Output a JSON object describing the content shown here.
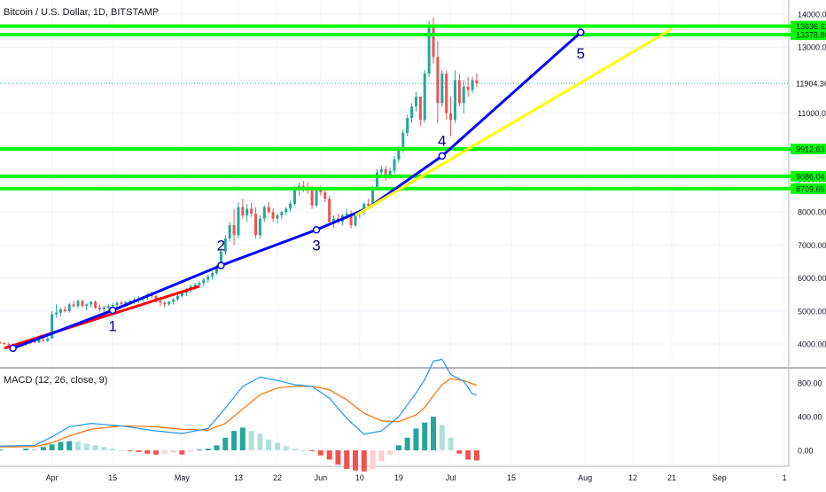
{
  "header": {
    "symbol_title": "Bitcoin / U.S. Dollar, 1D, BITSTAMP"
  },
  "macd_panel": {
    "title": "MACD (12, 26, close, 9)"
  },
  "colors": {
    "up_candle": "#26a69a",
    "down_candle": "#ef5350",
    "level_line": "#00ff00",
    "label_bg": "#00ff00",
    "last_price_line": "#26a69a",
    "blue_trend": "#0000ff",
    "yellow_trend": "#ffff00",
    "red_trend": "#ff0000",
    "wave_label": "#00008b",
    "macd_line": "#2196f3",
    "signal_line": "#ff6d00",
    "hist_up_strong": "#26a69a",
    "hist_up_weak": "#b2dfdb",
    "hist_down_strong": "#ef5350",
    "hist_down_weak": "#ffcdd2"
  },
  "chart_data": {
    "type": "candlestick",
    "title": "Bitcoin / U.S. Dollar, 1D, BITSTAMP",
    "x_ticks": [
      {
        "label": "Apr",
        "day": 6
      },
      {
        "label": "15",
        "day": 20
      },
      {
        "label": "May",
        "day": 36
      },
      {
        "label": "13",
        "day": 49
      },
      {
        "label": "22",
        "day": 58
      },
      {
        "label": "Jun",
        "day": 68
      },
      {
        "label": "10",
        "day": 77
      },
      {
        "label": "19",
        "day": 86
      },
      {
        "label": "Jul",
        "day": 98
      },
      {
        "label": "15",
        "day": 112
      },
      {
        "label": "Aug",
        "day": 129
      },
      {
        "label": "12",
        "day": 140
      },
      {
        "label": "21",
        "day": 149
      },
      {
        "label": "Sep",
        "day": 160
      },
      {
        "label": "1",
        "day": 175
      }
    ],
    "x_range": [
      -6,
      176
    ],
    "y_range": [
      3000,
      14300
    ],
    "y_ticks": [
      4000,
      5000,
      6000,
      7000,
      8000,
      9000,
      10000,
      11000,
      12000,
      13000,
      14000
    ],
    "y_tick_labels": [
      "4000.00",
      "5000.00",
      "6000.00",
      "7000.00",
      "8000.00",
      "9000.00",
      "10000.00",
      "11000.00",
      "12000.00",
      "13000.00",
      "14000.00"
    ],
    "horizontal_levels": [
      {
        "value": 13636.62,
        "label": "13636.62"
      },
      {
        "value": 13378.8,
        "label": "13378.80"
      },
      {
        "value": 9912.63,
        "label": "9912.63"
      },
      {
        "value": 9086.04,
        "label": "9086.04"
      },
      {
        "value": 8709.65,
        "label": "8709.65"
      }
    ],
    "last_price": {
      "value": 11904.36,
      "label": "11904.36"
    },
    "candles": [
      [
        -6,
        4050,
        4080,
        3990,
        4030
      ],
      [
        -5,
        4030,
        4060,
        3980,
        4000
      ],
      [
        -4,
        4000,
        4040,
        3960,
        3990
      ],
      [
        -3,
        3990,
        4020,
        3950,
        3970
      ],
      [
        -2,
        3970,
        4000,
        3930,
        3960
      ],
      [
        -1,
        3960,
        4000,
        3920,
        3990
      ],
      [
        0,
        3990,
        4050,
        3950,
        4020
      ],
      [
        1,
        4020,
        4100,
        3990,
        4080
      ],
      [
        2,
        4080,
        4130,
        4020,
        4050
      ],
      [
        3,
        4050,
        4150,
        4030,
        4120
      ],
      [
        4,
        4120,
        4200,
        4060,
        4090
      ],
      [
        5,
        4090,
        4220,
        4060,
        4170
      ],
      [
        6,
        4170,
        5000,
        4150,
        4900
      ],
      [
        7,
        4900,
        5200,
        4800,
        4950
      ],
      [
        8,
        4950,
        5100,
        4850,
        5050
      ],
      [
        9,
        5050,
        5150,
        4950,
        5000
      ],
      [
        10,
        5000,
        5250,
        4950,
        5200
      ],
      [
        11,
        5200,
        5300,
        5100,
        5150
      ],
      [
        12,
        5150,
        5350,
        5080,
        5300
      ],
      [
        13,
        5300,
        5350,
        5100,
        5150
      ],
      [
        14,
        5150,
        5250,
        5020,
        5200
      ],
      [
        15,
        5200,
        5300,
        5100,
        5280
      ],
      [
        16,
        5280,
        5320,
        5050,
        5100
      ],
      [
        17,
        5100,
        5200,
        4980,
        5050
      ],
      [
        18,
        5050,
        5150,
        4950,
        5100
      ],
      [
        19,
        5100,
        5200,
        5000,
        5150
      ],
      [
        20,
        5150,
        5250,
        5050,
        5180
      ],
      [
        21,
        5180,
        5300,
        5100,
        5250
      ],
      [
        22,
        5250,
        5320,
        5150,
        5200
      ],
      [
        23,
        5200,
        5300,
        5120,
        5280
      ],
      [
        24,
        5280,
        5350,
        5200,
        5300
      ],
      [
        25,
        5300,
        5400,
        5220,
        5350
      ],
      [
        26,
        5350,
        5450,
        5250,
        5380
      ],
      [
        27,
        5380,
        5450,
        5280,
        5420
      ],
      [
        28,
        5420,
        5550,
        5350,
        5500
      ],
      [
        29,
        5500,
        5600,
        5380,
        5450
      ],
      [
        30,
        5450,
        5500,
        5250,
        5300
      ],
      [
        31,
        5300,
        5380,
        5150,
        5250
      ],
      [
        32,
        5250,
        5300,
        5100,
        5200
      ],
      [
        33,
        5200,
        5300,
        5150,
        5280
      ],
      [
        34,
        5280,
        5400,
        5200,
        5350
      ],
      [
        35,
        5350,
        5500,
        5300,
        5450
      ],
      [
        36,
        5450,
        5600,
        5400,
        5550
      ],
      [
        37,
        5550,
        5700,
        5450,
        5650
      ],
      [
        38,
        5650,
        5800,
        5550,
        5750
      ],
      [
        39,
        5750,
        5850,
        5650,
        5800
      ],
      [
        40,
        5800,
        5900,
        5700,
        5850
      ],
      [
        41,
        5850,
        6000,
        5750,
        5950
      ],
      [
        42,
        5950,
        6100,
        5850,
        6050
      ],
      [
        43,
        6050,
        6200,
        5950,
        6150
      ],
      [
        44,
        6150,
        6400,
        6100,
        6350
      ],
      [
        45,
        6350,
        6900,
        6300,
        6800
      ],
      [
        46,
        6800,
        7300,
        6700,
        7200
      ],
      [
        47,
        7200,
        7700,
        7100,
        7600
      ],
      [
        48,
        7600,
        8100,
        7000,
        7300
      ],
      [
        49,
        7300,
        8300,
        7200,
        8150
      ],
      [
        50,
        8150,
        8400,
        7800,
        7900
      ],
      [
        51,
        7900,
        8250,
        7700,
        8100
      ],
      [
        52,
        8100,
        8300,
        7850,
        7950
      ],
      [
        53,
        7950,
        8150,
        7200,
        7300
      ],
      [
        54,
        7300,
        7900,
        7200,
        7800
      ],
      [
        55,
        7800,
        8200,
        7700,
        8150
      ],
      [
        56,
        8150,
        8300,
        7950,
        8000
      ],
      [
        57,
        8000,
        8100,
        7700,
        7800
      ],
      [
        58,
        7800,
        7950,
        7650,
        7900
      ],
      [
        59,
        7900,
        8050,
        7800,
        8000
      ],
      [
        60,
        8000,
        8150,
        7900,
        8100
      ],
      [
        61,
        8100,
        8350,
        8000,
        8250
      ],
      [
        62,
        8250,
        8800,
        8200,
        8700
      ],
      [
        63,
        8700,
        8900,
        8500,
        8800
      ],
      [
        64,
        8800,
        8950,
        8600,
        8750
      ],
      [
        65,
        8750,
        8900,
        8550,
        8650
      ],
      [
        66,
        8650,
        8800,
        8100,
        8200
      ],
      [
        67,
        8200,
        8750,
        8150,
        8700
      ],
      [
        68,
        8700,
        8800,
        8500,
        8600
      ],
      [
        69,
        8600,
        8750,
        8300,
        8400
      ],
      [
        70,
        8400,
        8500,
        7600,
        7700
      ],
      [
        71,
        7700,
        7900,
        7500,
        7800
      ],
      [
        72,
        7800,
        7950,
        7650,
        7700
      ],
      [
        73,
        7700,
        7950,
        7600,
        7900
      ],
      [
        74,
        7900,
        8100,
        7800,
        7950
      ],
      [
        75,
        7950,
        8050,
        7500,
        7600
      ],
      [
        76,
        7600,
        8000,
        7550,
        7950
      ],
      [
        77,
        7950,
        8100,
        7800,
        8000
      ],
      [
        78,
        8000,
        8300,
        7900,
        8250
      ],
      [
        79,
        8250,
        8400,
        8100,
        8200
      ],
      [
        80,
        8200,
        8800,
        8150,
        8700
      ],
      [
        81,
        8700,
        9300,
        8650,
        9200
      ],
      [
        82,
        9200,
        9400,
        9050,
        9300
      ],
      [
        83,
        9300,
        9400,
        8950,
        9100
      ],
      [
        84,
        9100,
        9350,
        9000,
        9250
      ],
      [
        85,
        9250,
        9700,
        9150,
        9600
      ],
      [
        86,
        9600,
        10000,
        9500,
        9900
      ],
      [
        87,
        9900,
        10500,
        9800,
        10400
      ],
      [
        88,
        10400,
        10950,
        10300,
        10850
      ],
      [
        89,
        10850,
        11300,
        10700,
        11200
      ],
      [
        90,
        11200,
        11650,
        11050,
        11500
      ],
      [
        91,
        11500,
        11400,
        10600,
        10800
      ],
      [
        92,
        10800,
        12300,
        10700,
        12200
      ],
      [
        93,
        12200,
        13800,
        12100,
        13600
      ],
      [
        94,
        13600,
        13900,
        12500,
        12700
      ],
      [
        95,
        12700,
        13200,
        10700,
        11300
      ],
      [
        96,
        11300,
        12300,
        11200,
        12200
      ],
      [
        97,
        12200,
        12300,
        10800,
        11000
      ],
      [
        98,
        11000,
        11500,
        10300,
        10800
      ],
      [
        99,
        10800,
        12300,
        10700,
        12000
      ],
      [
        100,
        12000,
        12200,
        11200,
        11300
      ],
      [
        101,
        11300,
        12000,
        11000,
        11800
      ],
      [
        102,
        11800,
        12100,
        11500,
        11700
      ],
      [
        103,
        11700,
        12100,
        11600,
        12000
      ],
      [
        104,
        12000,
        12200,
        11800,
        11904
      ]
    ],
    "trend_lines": [
      {
        "name": "red",
        "points": [
          [
            -5,
            3870
          ],
          [
            40,
            5750
          ]
        ]
      },
      {
        "name": "blue",
        "points": [
          [
            -3,
            3870
          ],
          [
            20,
            5020
          ],
          [
            45,
            6380
          ],
          [
            67,
            7460
          ],
          [
            79,
            8130
          ],
          [
            96,
            9700
          ],
          [
            128,
            13450
          ]
        ]
      },
      {
        "name": "yellow",
        "points": [
          [
            76,
            7900
          ],
          [
            149,
            13550
          ]
        ]
      }
    ],
    "wave_points": [
      {
        "label": "1",
        "day": 20,
        "price": 5020,
        "label_price": 4510
      },
      {
        "label": "2",
        "day": 45,
        "price": 6380,
        "label_price": 6960
      },
      {
        "label": "3",
        "day": 67,
        "price": 7460,
        "label_price": 6960
      },
      {
        "label": "4",
        "day": 96,
        "price": 9700,
        "label_price": 10130
      },
      {
        "label": "5",
        "day": 128,
        "price": 13450,
        "label_price": 12780
      }
    ],
    "macd": {
      "y_range": [
        -300,
        1150
      ],
      "y_ticks": [
        0,
        400,
        800
      ],
      "y_tick_labels": [
        "0.00",
        "400.00",
        "800.00"
      ],
      "macd_line": [
        [
          -6,
          50
        ],
        [
          2,
          60
        ],
        [
          6,
          160
        ],
        [
          10,
          280
        ],
        [
          15,
          320
        ],
        [
          22,
          290
        ],
        [
          30,
          230
        ],
        [
          36,
          200
        ],
        [
          42,
          260
        ],
        [
          46,
          500
        ],
        [
          50,
          760
        ],
        [
          54,
          870
        ],
        [
          58,
          830
        ],
        [
          62,
          780
        ],
        [
          66,
          760
        ],
        [
          70,
          620
        ],
        [
          74,
          380
        ],
        [
          78,
          190
        ],
        [
          82,
          230
        ],
        [
          86,
          400
        ],
        [
          90,
          680
        ],
        [
          92,
          840
        ],
        [
          94,
          1060
        ],
        [
          96,
          1080
        ],
        [
          98,
          900
        ],
        [
          101,
          820
        ],
        [
          103,
          670
        ],
        [
          104,
          660
        ]
      ],
      "signal_line": [
        [
          -6,
          40
        ],
        [
          2,
          45
        ],
        [
          6,
          90
        ],
        [
          10,
          170
        ],
        [
          15,
          250
        ],
        [
          22,
          290
        ],
        [
          30,
          280
        ],
        [
          36,
          250
        ],
        [
          42,
          240
        ],
        [
          46,
          320
        ],
        [
          50,
          490
        ],
        [
          54,
          660
        ],
        [
          58,
          740
        ],
        [
          62,
          760
        ],
        [
          66,
          760
        ],
        [
          70,
          720
        ],
        [
          74,
          600
        ],
        [
          78,
          440
        ],
        [
          82,
          350
        ],
        [
          86,
          340
        ],
        [
          90,
          420
        ],
        [
          92,
          510
        ],
        [
          94,
          650
        ],
        [
          96,
          780
        ],
        [
          98,
          850
        ],
        [
          101,
          830
        ],
        [
          103,
          790
        ],
        [
          104,
          770
        ]
      ],
      "histogram": [
        [
          -6,
          10
        ],
        [
          0,
          20
        ],
        [
          2,
          15
        ],
        [
          4,
          40
        ],
        [
          6,
          70
        ],
        [
          8,
          100
        ],
        [
          10,
          110
        ],
        [
          12,
          100
        ],
        [
          14,
          80
        ],
        [
          16,
          60
        ],
        [
          18,
          40
        ],
        [
          20,
          20
        ],
        [
          22,
          0
        ],
        [
          24,
          -10
        ],
        [
          26,
          -20
        ],
        [
          28,
          -40
        ],
        [
          30,
          -50
        ],
        [
          32,
          -40
        ],
        [
          34,
          -30
        ],
        [
          36,
          -50
        ],
        [
          38,
          -20
        ],
        [
          40,
          10
        ],
        [
          42,
          20
        ],
        [
          44,
          60
        ],
        [
          46,
          150
        ],
        [
          48,
          230
        ],
        [
          50,
          270
        ],
        [
          52,
          230
        ],
        [
          54,
          200
        ],
        [
          56,
          130
        ],
        [
          58,
          90
        ],
        [
          60,
          50
        ],
        [
          62,
          20
        ],
        [
          64,
          0
        ],
        [
          66,
          -10
        ],
        [
          68,
          -60
        ],
        [
          70,
          -110
        ],
        [
          72,
          -170
        ],
        [
          74,
          -220
        ],
        [
          76,
          -240
        ],
        [
          78,
          -250
        ],
        [
          80,
          -220
        ],
        [
          82,
          -130
        ],
        [
          84,
          -50
        ],
        [
          86,
          60
        ],
        [
          88,
          150
        ],
        [
          90,
          260
        ],
        [
          92,
          330
        ],
        [
          94,
          400
        ],
        [
          96,
          300
        ],
        [
          98,
          150
        ],
        [
          100,
          -40
        ],
        [
          102,
          -110
        ],
        [
          104,
          -120
        ]
      ]
    }
  }
}
